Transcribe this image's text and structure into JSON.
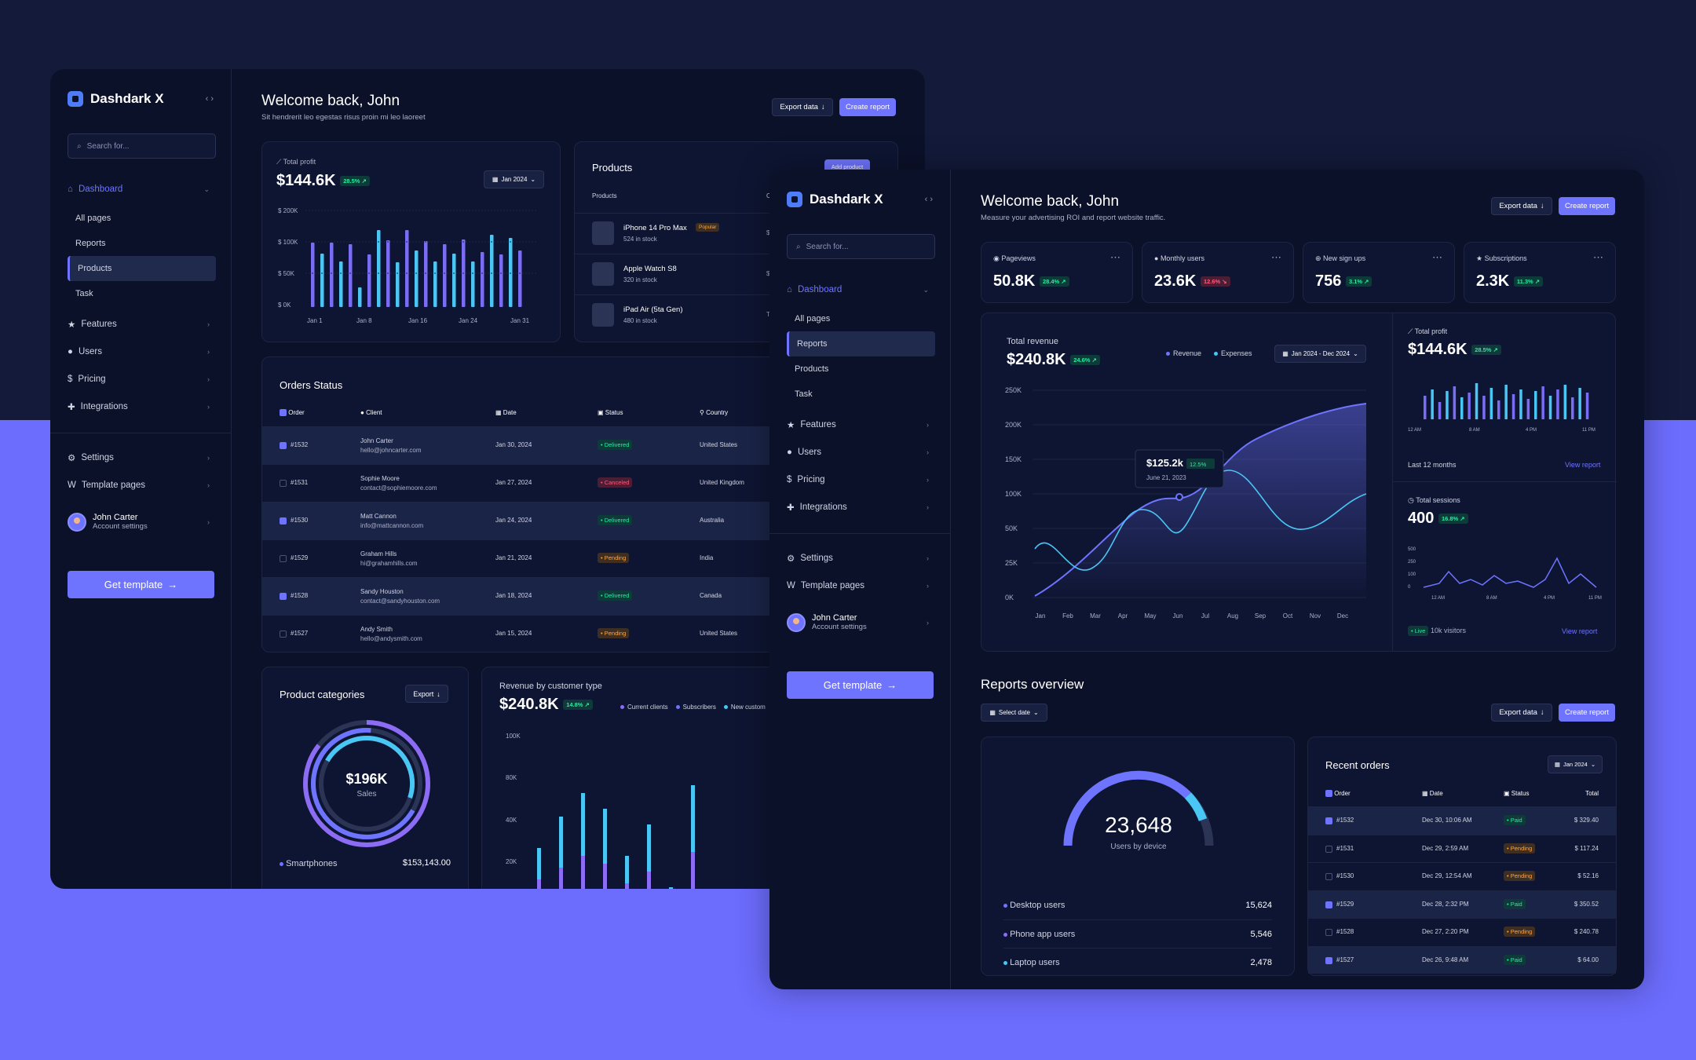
{
  "brand": "Dashdark X",
  "colors": {
    "accent": "#6f74ff",
    "bg": "#0b1129",
    "outer_top": "#131a3a",
    "outer_bottom": "#6c6cfd",
    "cyan": "#49c6f4"
  },
  "sidebar": {
    "search_placeholder": "Search for...",
    "dashboard": "Dashboard",
    "subitems": [
      "All pages",
      "Reports",
      "Products",
      "Task"
    ],
    "items": [
      "Features",
      "Users",
      "Pricing",
      "Integrations"
    ],
    "settings": "Settings",
    "template_pages": "Template pages",
    "user_name": "John Carter",
    "user_sub": "Account settings",
    "cta": "Get template"
  },
  "w1": {
    "selected": "Products",
    "title": "Welcome back, John",
    "subtitle": "Sit hendrerit leo egestas risus proin mi leo laoreet",
    "export": "Export data",
    "create": "Create report",
    "profit": {
      "label": "Total profit",
      "value": "$144.6K",
      "change": "28.5%",
      "date": "Jan 2024",
      "yticks": [
        "$ 200K",
        "$ 100K",
        "$ 50K",
        "$ 0K"
      ],
      "xticks": [
        "Jan 1",
        "Jan 8",
        "Jan 16",
        "Jan 24",
        "Jan 31"
      ]
    },
    "products": {
      "title": "Products",
      "add": "Add product",
      "col": "Products",
      "col2": "C",
      "items": [
        {
          "name": "iPhone 14 Pro Max",
          "stock": "524 in stock",
          "badge": "Popular",
          "p": "$"
        },
        {
          "name": "Apple Watch S8",
          "stock": "320 in stock",
          "p": "$"
        },
        {
          "name": "iPad Air (5ta Gen)",
          "stock": "480 in stock",
          "p": "T"
        }
      ]
    },
    "orders": {
      "title": "Orders Status",
      "cols": [
        "Order",
        "Client",
        "Date",
        "Status",
        "Country"
      ],
      "rows": [
        {
          "id": "#1532",
          "name": "John Carter",
          "email": "hello@johncarter.com",
          "date": "Jan 30, 2024",
          "status": "Delivered",
          "country": "United States",
          "checked": true
        },
        {
          "id": "#1531",
          "name": "Sophie Moore",
          "email": "contact@sophiemoore.com",
          "date": "Jan 27, 2024",
          "status": "Canceled",
          "country": "United Kingdom",
          "checked": false
        },
        {
          "id": "#1530",
          "name": "Matt Cannon",
          "email": "info@mattcannon.com",
          "date": "Jan 24, 2024",
          "status": "Delivered",
          "country": "Australia",
          "checked": true
        },
        {
          "id": "#1529",
          "name": "Graham Hills",
          "email": "hi@grahamhills.com",
          "date": "Jan 21, 2024",
          "status": "Pending",
          "country": "India",
          "checked": false
        },
        {
          "id": "#1528",
          "name": "Sandy Houston",
          "email": "contact@sandyhouston.com",
          "date": "Jan 18, 2024",
          "status": "Delivered",
          "country": "Canada",
          "checked": true
        },
        {
          "id": "#1527",
          "name": "Andy Smith",
          "email": "hello@andysmith.com",
          "date": "Jan 15, 2024",
          "status": "Pending",
          "country": "United States",
          "checked": false
        }
      ]
    },
    "categories": {
      "title": "Product categories",
      "export": "Export",
      "value": "$196K",
      "label": "Sales",
      "item": "Smartphones",
      "item_value": "$153,143.00"
    },
    "revcust": {
      "title": "Revenue by customer type",
      "value": "$240.8K",
      "change": "14.8%",
      "legend": [
        "Current clients",
        "Subscribers",
        "New custom"
      ],
      "yticks": [
        "100K",
        "80K",
        "40K",
        "20K"
      ]
    }
  },
  "w2": {
    "selected": "Reports",
    "title": "Welcome back, John",
    "subtitle": "Measure your advertising ROI and report website traffic.",
    "export": "Export data",
    "create": "Create report",
    "stats": [
      {
        "label": "Pageviews",
        "value": "50.8K",
        "change": "28.4%",
        "dir": "up"
      },
      {
        "label": "Monthly users",
        "value": "23.6K",
        "change": "12.6%",
        "dir": "down"
      },
      {
        "label": "New sign ups",
        "value": "756",
        "change": "3.1%",
        "dir": "up"
      },
      {
        "label": "Subscriptions",
        "value": "2.3K",
        "change": "11.3%",
        "dir": "up"
      }
    ],
    "revenue": {
      "title": "Total revenue",
      "value": "$240.8K",
      "change": "24.6%",
      "legend": [
        "Revenue",
        "Expenses"
      ],
      "range": "Jan 2024 - Dec 2024",
      "yticks": [
        "250K",
        "200K",
        "150K",
        "100K",
        "50K",
        "25K",
        "0K"
      ],
      "xticks": [
        "Jan",
        "Feb",
        "Mar",
        "Apr",
        "May",
        "Jun",
        "Jul",
        "Aug",
        "Sep",
        "Oct",
        "Nov",
        "Dec"
      ],
      "tooltip": {
        "value": "$125.2k",
        "change": "12.5%",
        "date": "June 21, 2023"
      }
    },
    "profit": {
      "label": "Total profit",
      "value": "$144.6K",
      "change": "28.5%",
      "xticks": [
        "12 AM",
        "8 AM",
        "4 PM",
        "11 PM"
      ],
      "foot": "Last 12 months",
      "link": "View report"
    },
    "sessions": {
      "label": "Total sessions",
      "value": "400",
      "change": "16.8%",
      "yticks": [
        "500",
        "250",
        "100",
        "0"
      ],
      "xticks": [
        "12 AM",
        "8 AM",
        "4 PM",
        "11 PM"
      ],
      "live": "Live",
      "visitors": "10k visitors",
      "link": "View report"
    },
    "overview": {
      "title": "Reports overview",
      "select": "Select date",
      "export": "Export data",
      "create": "Create report"
    },
    "device": {
      "value": "23,648",
      "label": "Users by device",
      "rows": [
        {
          "name": "Desktop users",
          "value": "15,624"
        },
        {
          "name": "Phone app users",
          "value": "5,546"
        },
        {
          "name": "Laptop users",
          "value": "2,478"
        }
      ]
    },
    "recent": {
      "title": "Recent orders",
      "date": "Jan 2024",
      "cols": [
        "Order",
        "Date",
        "Status",
        "Total"
      ],
      "rows": [
        {
          "id": "#1532",
          "date": "Dec 30, 10:06 AM",
          "status": "Paid",
          "total": "$ 329.40",
          "checked": true
        },
        {
          "id": "#1531",
          "date": "Dec 29, 2:59 AM",
          "status": "Pending",
          "total": "$ 117.24",
          "checked": false
        },
        {
          "id": "#1530",
          "date": "Dec 29, 12:54 AM",
          "status": "Pending",
          "total": "$ 52.16",
          "checked": false
        },
        {
          "id": "#1529",
          "date": "Dec 28, 2:32 PM",
          "status": "Paid",
          "total": "$ 350.52",
          "checked": true
        },
        {
          "id": "#1528",
          "date": "Dec 27, 2:20 PM",
          "status": "Pending",
          "total": "$ 240.78",
          "checked": false
        },
        {
          "id": "#1527",
          "date": "Dec 26, 9:48 AM",
          "status": "Paid",
          "total": "$ 64.00",
          "checked": true
        }
      ]
    }
  }
}
